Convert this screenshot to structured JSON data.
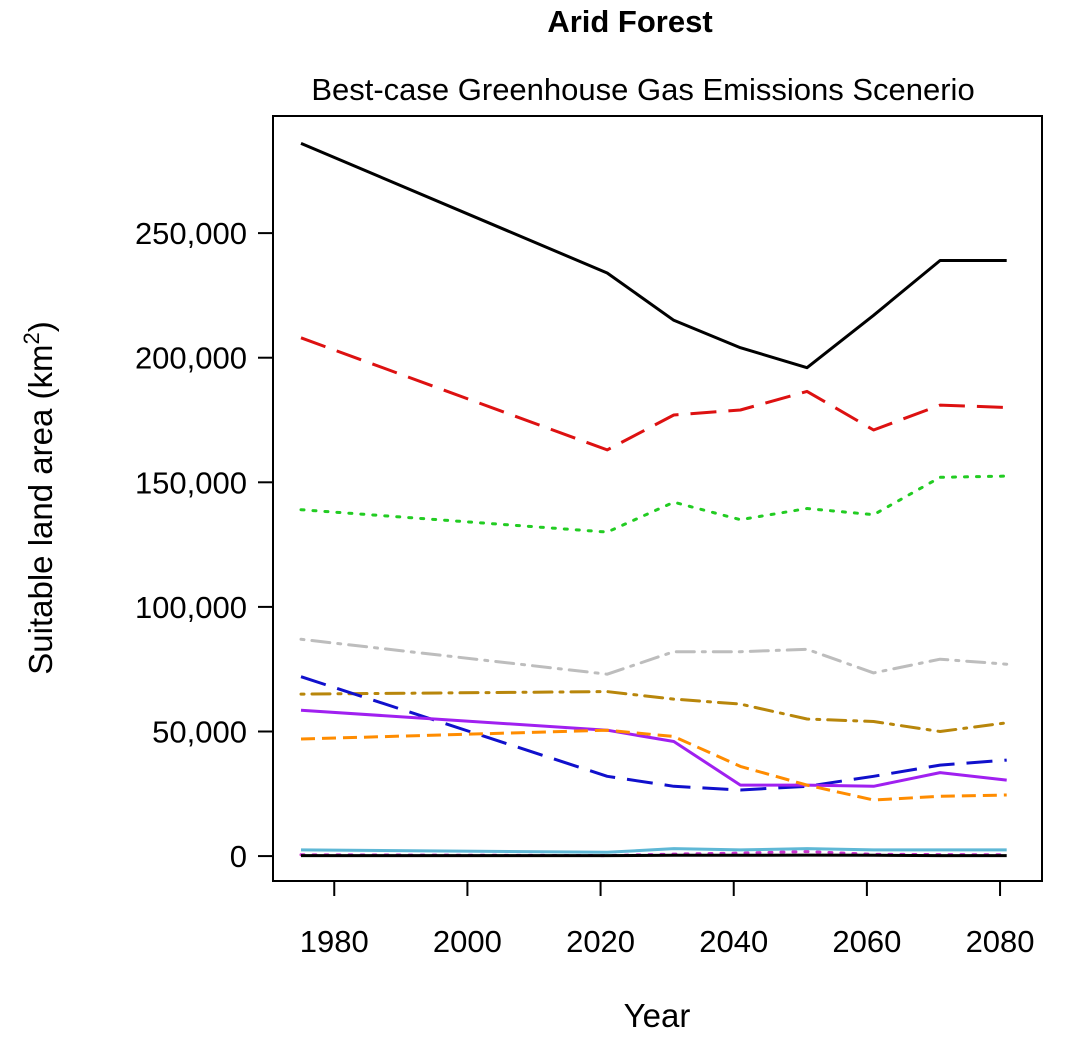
{
  "chart_data": {
    "type": "line",
    "title": "Arid Forest",
    "subtitle": "Best-case Greenhouse Gas Emissions Scenerio",
    "xlabel": "Year",
    "ylabel": "Suitable land area (km",
    "ylabel_superscript": "2",
    "ylabel_close": ")",
    "xlim": [
      1970,
      1976,
      2086
    ],
    "ylim": [
      -10000,
      297000
    ],
    "x_ticks": [
      1980,
      2000,
      2020,
      2040,
      2060,
      2080
    ],
    "x_tick_labels": [
      "1980",
      "2000",
      "2020",
      "2040",
      "2060",
      "2080"
    ],
    "y_ticks": [
      0,
      50000,
      100000,
      150000,
      200000,
      250000
    ],
    "y_tick_labels": [
      "0",
      "50,000",
      "100,000",
      "150,000",
      "200,000",
      "250,000"
    ],
    "grid": false,
    "x": [
      1975,
      2021,
      2031,
      2041,
      2051,
      2061,
      2071,
      2081
    ],
    "series": [
      {
        "color": "#000000",
        "dash": "solid",
        "values": [
          286000,
          234000,
          215000,
          204000,
          196000,
          217000,
          239000,
          239000
        ]
      },
      {
        "color": "#dd1111",
        "dash": "longdash",
        "values": [
          208000,
          163000,
          177000,
          179000,
          186500,
          171000,
          181000,
          180000
        ]
      },
      {
        "color": "#22cc22",
        "dash": "dotted",
        "values": [
          139000,
          130000,
          142000,
          135000,
          139500,
          137000,
          152000,
          152500
        ]
      },
      {
        "color": "#bdbdbd",
        "dash": "dotdash",
        "values": [
          87000,
          73000,
          82000,
          82000,
          83000,
          73500,
          79000,
          77000
        ]
      },
      {
        "color": "#b8860b",
        "dash": "dotdash",
        "values": [
          65000,
          66000,
          63000,
          61000,
          55000,
          54000,
          50000,
          53500
        ]
      },
      {
        "color": "#1010cc",
        "dash": "longdash",
        "values": [
          72000,
          32000,
          28000,
          26500,
          28000,
          32000,
          36500,
          38500
        ]
      },
      {
        "color": "#a020f0",
        "dash": "solid",
        "values": [
          58500,
          50500,
          46000,
          28500,
          28500,
          28000,
          33500,
          30500
        ]
      },
      {
        "color": "#ff8c00",
        "dash": "dashed",
        "values": [
          47000,
          50500,
          48000,
          36000,
          28500,
          22500,
          24000,
          24500
        ]
      },
      {
        "color": "#5fb8d6",
        "dash": "solid",
        "values": [
          2500,
          1500,
          3000,
          2500,
          3000,
          2500,
          2500,
          2500
        ]
      },
      {
        "color": "#cc33cc",
        "dash": "dotted",
        "values": [
          500,
          200,
          800,
          1200,
          1800,
          700,
          600,
          500
        ]
      },
      {
        "color": "#000000",
        "dash": "solid",
        "values": [
          200,
          200,
          300,
          300,
          400,
          300,
          200,
          200
        ]
      }
    ]
  }
}
